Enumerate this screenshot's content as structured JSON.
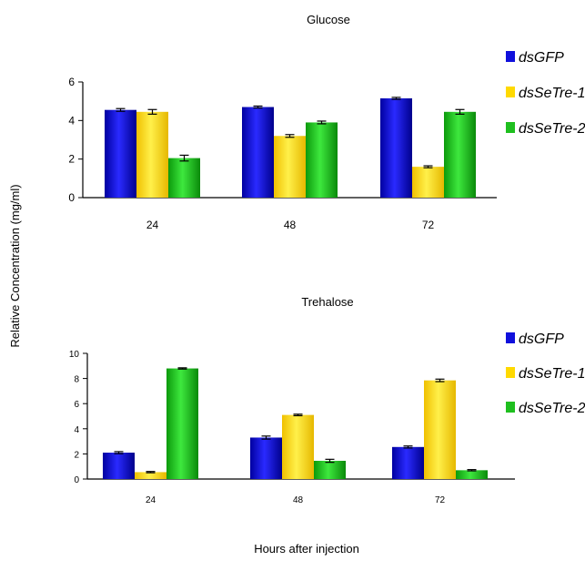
{
  "shared": {
    "ylabel": "Relative Concentration (mg/ml)",
    "xlabel": "Hours after injection"
  },
  "colors": {
    "dsGFP": "#1010dc",
    "dsSeTre-1": "#ffd900",
    "dsSeTre-2": "#1fbf1f"
  },
  "chart_data": [
    {
      "type": "bar",
      "title": "Glucose",
      "categories": [
        "24",
        "48",
        "72"
      ],
      "ylim": [
        0,
        6
      ],
      "yticks": [
        0,
        2,
        4,
        6
      ],
      "legend_position": "right",
      "series": [
        {
          "name": "dsGFP",
          "values": [
            4.55,
            4.7,
            5.15
          ],
          "errors": [
            0.07,
            0.05,
            0.05
          ]
        },
        {
          "name": "dsSeTre-1",
          "values": [
            4.45,
            3.2,
            1.6
          ],
          "errors": [
            0.12,
            0.07,
            0.05
          ]
        },
        {
          "name": "dsSeTre-2",
          "values": [
            2.05,
            3.9,
            4.45
          ],
          "errors": [
            0.15,
            0.07,
            0.12
          ]
        }
      ]
    },
    {
      "type": "bar",
      "title": "Trehalose",
      "categories": [
        "24",
        "48",
        "72"
      ],
      "ylim": [
        0,
        10
      ],
      "yticks": [
        0,
        2,
        4,
        6,
        8,
        10
      ],
      "legend_position": "right",
      "series": [
        {
          "name": "dsGFP",
          "values": [
            2.1,
            3.3,
            2.55
          ],
          "errors": [
            0.08,
            0.12,
            0.08
          ]
        },
        {
          "name": "dsSeTre-1",
          "values": [
            0.55,
            5.1,
            7.85
          ],
          "errors": [
            0.05,
            0.06,
            0.1
          ]
        },
        {
          "name": "dsSeTre-2",
          "values": [
            8.8,
            1.45,
            0.7
          ],
          "errors": [
            0.05,
            0.12,
            0.05
          ]
        }
      ]
    }
  ]
}
